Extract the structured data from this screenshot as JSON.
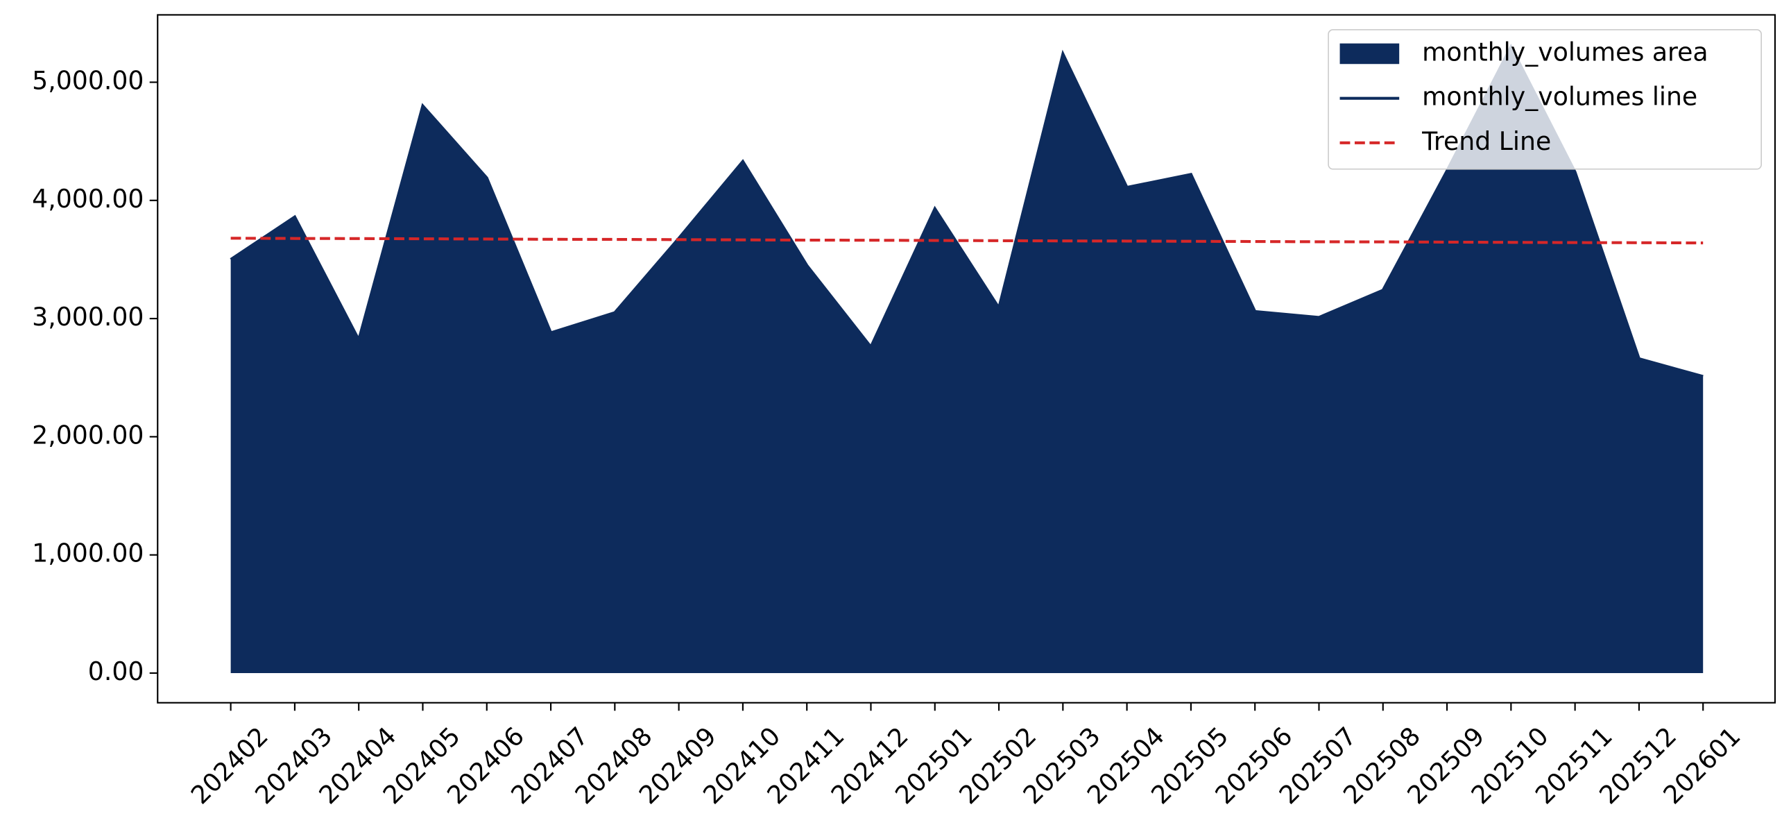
{
  "chart_data": {
    "type": "area",
    "categories": [
      "202402",
      "202403",
      "202404",
      "202405",
      "202406",
      "202407",
      "202408",
      "202409",
      "202410",
      "202411",
      "202412",
      "202501",
      "202502",
      "202503",
      "202504",
      "202505",
      "202506",
      "202507",
      "202508",
      "202509",
      "202510",
      "202511",
      "202512",
      "202601"
    ],
    "series": [
      {
        "name": "monthly_volumes area",
        "color": "#0d2b5c",
        "style": "area",
        "values": [
          3500,
          3860,
          2820,
          4800,
          4190,
          2880,
          3050,
          3680,
          4330,
          3450,
          2760,
          3930,
          3090,
          5240,
          4110,
          4220,
          3060,
          3010,
          3240,
          4250,
          5300,
          4240,
          2660,
          2510
        ]
      },
      {
        "name": "monthly_volumes line",
        "color": "#0d2b5c",
        "style": "line",
        "values": [
          3500,
          3860,
          2820,
          4800,
          4190,
          2880,
          3050,
          3680,
          4330,
          3450,
          2760,
          3930,
          3090,
          5240,
          4110,
          4220,
          3060,
          3010,
          3240,
          4250,
          5300,
          4240,
          2660,
          2510
        ]
      },
      {
        "name": "Trend Line",
        "color": "#d62728",
        "style": "dashed",
        "values": [
          3680,
          3678,
          3677,
          3675,
          3673,
          3671,
          3670,
          3668,
          3666,
          3664,
          3663,
          3661,
          3659,
          3657,
          3656,
          3654,
          3652,
          3650,
          3649,
          3647,
          3645,
          3643,
          3642,
          3640
        ]
      }
    ],
    "ylim": [
      -251,
      5570
    ],
    "yticks": [
      {
        "value": 0,
        "label": "0.00"
      },
      {
        "value": 1000,
        "label": "1,000.00"
      },
      {
        "value": 2000,
        "label": "2,000.00"
      },
      {
        "value": 3000,
        "label": "3,000.00"
      },
      {
        "value": 4000,
        "label": "4,000.00"
      },
      {
        "value": 5000,
        "label": "5,000.00"
      }
    ],
    "legend": "upper right",
    "grid": false
  }
}
